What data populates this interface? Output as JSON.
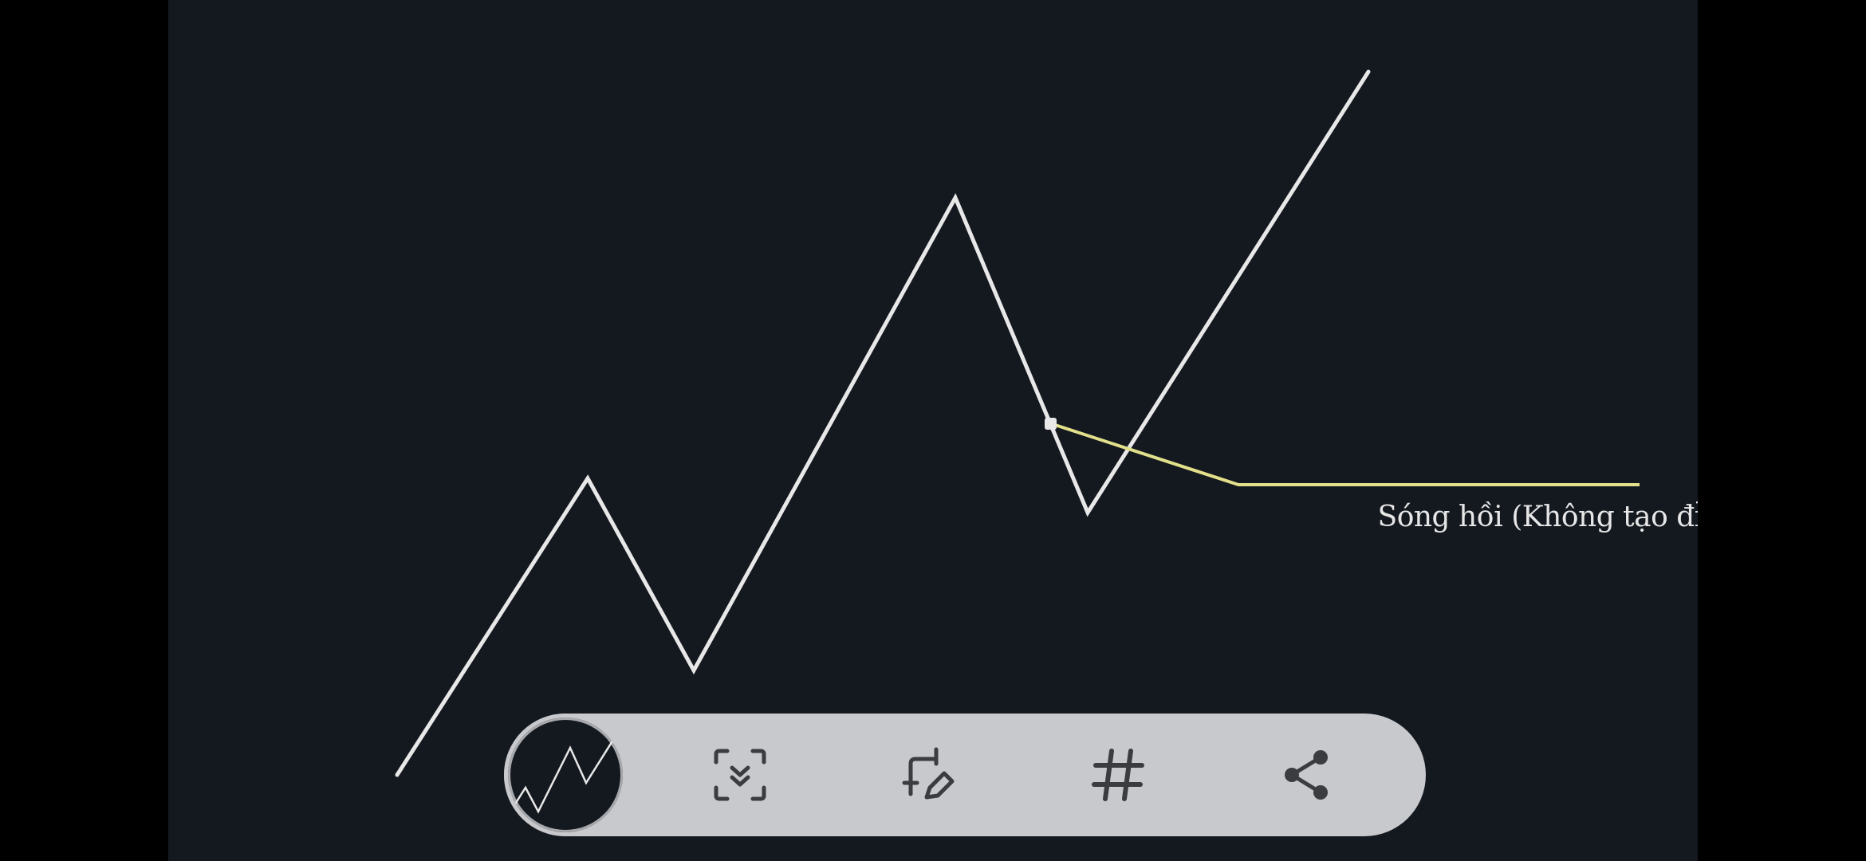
{
  "annotation": {
    "label": "Sóng hồi (Không tạo đỉnh đáy)"
  },
  "colors": {
    "background": "#141920",
    "wave_line": "#e8e8e8",
    "annotation_line": "#e2e08a",
    "toolbar": "#c8c9cc",
    "icon": "#3a3c40"
  },
  "toolbar": {
    "buttons": [
      {
        "name": "preview-thumbnail",
        "icon": "zigzag-chart-icon"
      },
      {
        "name": "scroll-capture-button",
        "icon": "scroll-capture-icon"
      },
      {
        "name": "crop-edit-button",
        "icon": "crop-pencil-icon"
      },
      {
        "name": "tag-button",
        "icon": "hashtag-icon"
      },
      {
        "name": "share-button",
        "icon": "share-icon"
      }
    ]
  }
}
